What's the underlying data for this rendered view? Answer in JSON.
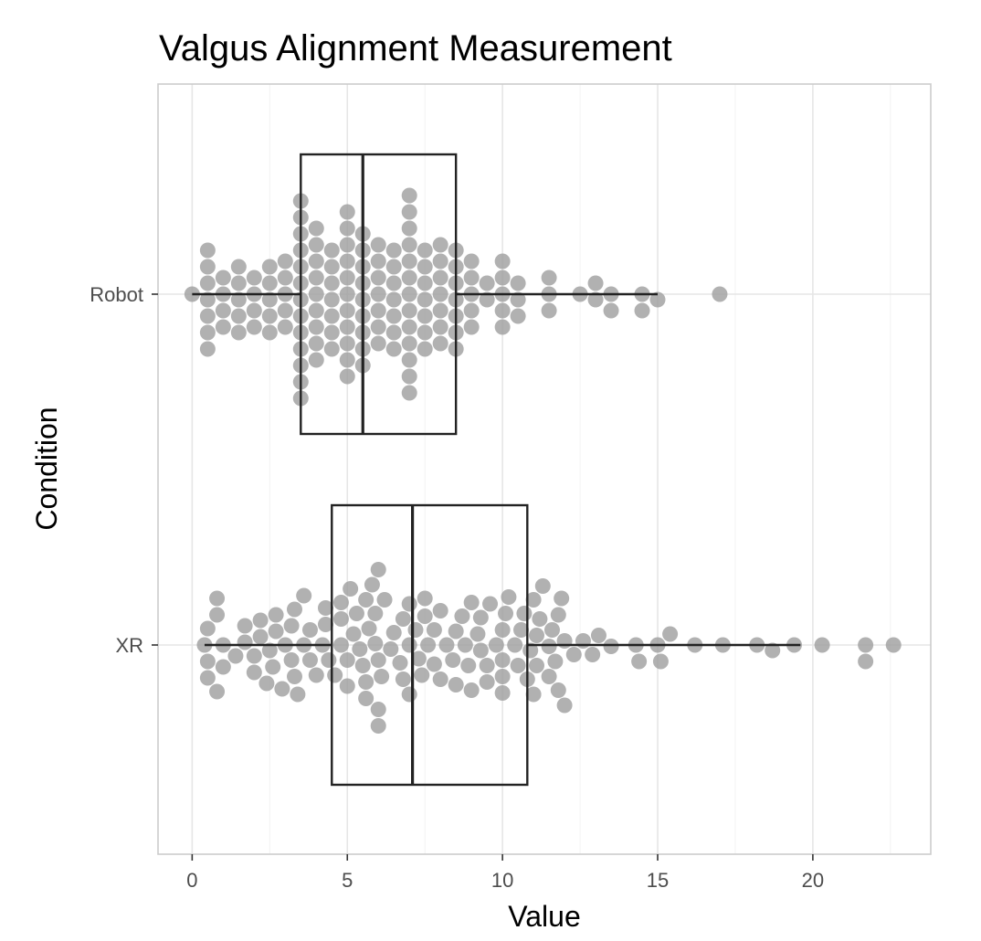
{
  "chart_data": {
    "type": "boxplot-beeswarm",
    "title": "Valgus Alignment Measurement",
    "xlabel": "Value",
    "ylabel": "Condition",
    "xlim": [
      -1.1,
      23.8
    ],
    "x_ticks": [
      0,
      5,
      10,
      15,
      20
    ],
    "grid": true,
    "colors": {
      "point": "#9e9e9e",
      "box": "#222222"
    },
    "categories": [
      "Robot",
      "XR"
    ],
    "series": [
      {
        "name": "Robot",
        "box": {
          "min": 0,
          "q1": 3.5,
          "median": 5.5,
          "q3": 8.5,
          "max": 15.0
        },
        "values": [
          0.0,
          0.5,
          0.5,
          0.5,
          0.5,
          0.5,
          0.5,
          0.5,
          1.0,
          1.0,
          1.0,
          1.0,
          1.5,
          1.5,
          1.5,
          1.5,
          1.5,
          2.0,
          2.0,
          2.0,
          2.0,
          2.5,
          2.5,
          2.5,
          2.5,
          2.5,
          3.0,
          3.0,
          3.0,
          3.0,
          3.0,
          3.5,
          3.5,
          3.5,
          3.5,
          3.5,
          3.5,
          3.5,
          3.5,
          3.5,
          3.5,
          3.5,
          3.5,
          3.5,
          4.0,
          4.0,
          4.0,
          4.0,
          4.0,
          4.0,
          4.0,
          4.0,
          4.0,
          4.5,
          4.5,
          4.5,
          4.5,
          4.5,
          4.5,
          4.5,
          5.0,
          5.0,
          5.0,
          5.0,
          5.0,
          5.0,
          5.0,
          5.0,
          5.0,
          5.0,
          5.0,
          5.5,
          5.5,
          5.5,
          5.5,
          5.5,
          5.5,
          5.5,
          5.5,
          5.5,
          6.0,
          6.0,
          6.0,
          6.0,
          6.0,
          6.0,
          6.0,
          6.5,
          6.5,
          6.5,
          6.5,
          6.5,
          6.5,
          6.5,
          7.0,
          7.0,
          7.0,
          7.0,
          7.0,
          7.0,
          7.0,
          7.0,
          7.0,
          7.0,
          7.0,
          7.0,
          7.0,
          7.5,
          7.5,
          7.5,
          7.5,
          7.5,
          7.5,
          7.5,
          8.0,
          8.0,
          8.0,
          8.0,
          8.0,
          8.0,
          8.0,
          8.5,
          8.5,
          8.5,
          8.5,
          8.5,
          8.5,
          8.5,
          9.0,
          9.0,
          9.0,
          9.0,
          9.0,
          9.5,
          9.5,
          10.0,
          10.0,
          10.0,
          10.0,
          10.0,
          10.5,
          10.5,
          10.5,
          11.5,
          11.5,
          11.5,
          12.5,
          13.0,
          13.0,
          13.5,
          13.5,
          14.5,
          14.5,
          15.0,
          17.0
        ]
      },
      {
        "name": "XR",
        "box": {
          "min": 0.4,
          "q1": 4.5,
          "median": 7.1,
          "q3": 10.8,
          "max": 19.6
        },
        "values": [
          0.4,
          0.5,
          0.5,
          0.5,
          0.8,
          0.8,
          0.8,
          1.0,
          1.0,
          1.4,
          1.7,
          1.7,
          2.0,
          2.0,
          2.2,
          2.2,
          2.4,
          2.5,
          2.6,
          2.7,
          2.7,
          2.9,
          3.0,
          3.2,
          3.2,
          3.3,
          3.3,
          3.4,
          3.6,
          3.6,
          3.8,
          3.8,
          4.0,
          4.2,
          4.3,
          4.3,
          4.4,
          4.6,
          4.8,
          4.8,
          4.8,
          5.0,
          5.0,
          5.1,
          5.2,
          5.3,
          5.4,
          5.5,
          5.6,
          5.6,
          5.6,
          5.7,
          5.8,
          5.9,
          5.9,
          6.0,
          6.0,
          6.0,
          6.0,
          6.1,
          6.2,
          6.4,
          6.5,
          6.7,
          6.8,
          6.8,
          7.0,
          7.0,
          7.0,
          7.2,
          7.3,
          7.4,
          7.5,
          7.5,
          7.6,
          7.8,
          7.8,
          8.0,
          8.0,
          8.2,
          8.4,
          8.5,
          8.5,
          8.7,
          8.8,
          8.9,
          9.0,
          9.0,
          9.2,
          9.3,
          9.3,
          9.5,
          9.5,
          9.6,
          9.8,
          10.0,
          10.0,
          10.0,
          10.0,
          10.1,
          10.2,
          10.4,
          10.5,
          10.6,
          10.7,
          10.8,
          10.9,
          11.0,
          11.0,
          11.1,
          11.1,
          11.2,
          11.3,
          11.5,
          11.5,
          11.6,
          11.7,
          11.8,
          11.8,
          11.9,
          12.0,
          12.0,
          12.3,
          12.6,
          12.9,
          13.1,
          13.5,
          14.3,
          14.4,
          15.0,
          15.1,
          15.4,
          16.2,
          17.1,
          18.2,
          18.7,
          19.4,
          20.3,
          21.7,
          21.7,
          22.6
        ]
      }
    ]
  }
}
